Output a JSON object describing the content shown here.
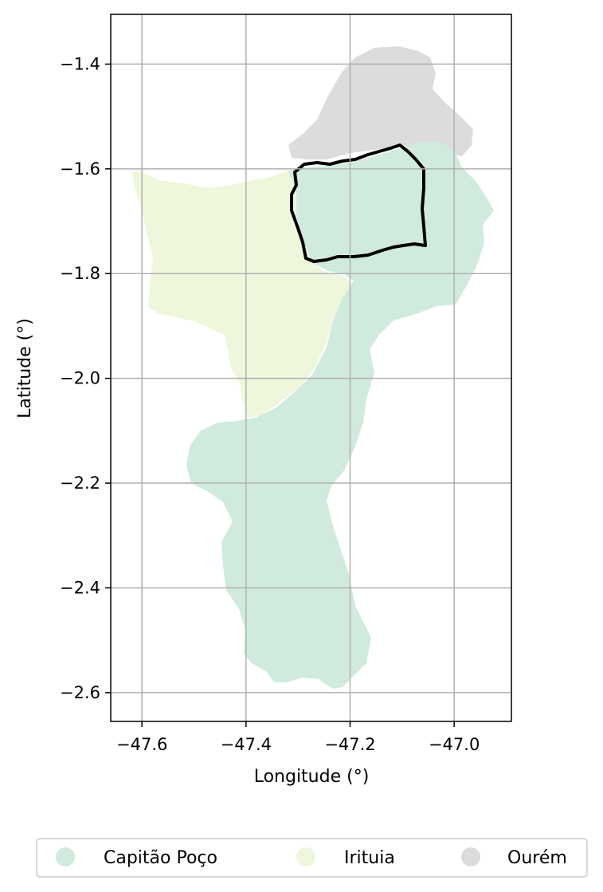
{
  "map": {
    "xlabel": "Longitude (°)",
    "ylabel": "Latitude (°)",
    "xlim": [
      -47.66,
      -46.89
    ],
    "ylim": [
      -2.655,
      -1.305
    ],
    "x_ticks": [
      -47.6,
      -47.4,
      -47.2,
      -47.0
    ],
    "y_ticks": [
      -1.4,
      -1.6,
      -1.8,
      -2.0,
      -2.2,
      -2.4,
      -2.6
    ],
    "x_tick_labels": [
      "−47.6",
      "−47.4",
      "−47.2",
      "−47.0"
    ],
    "y_tick_labels": [
      "−1.4",
      "−1.6",
      "−1.8",
      "−2.0",
      "−2.2",
      "−2.4",
      "−2.6"
    ],
    "grid": true,
    "legend_position": "bottom, below plot",
    "regions": [
      {
        "name": "Capitão Poço",
        "color": "#d0ebdd"
      },
      {
        "name": "Irituia",
        "color": "#eef7dc"
      },
      {
        "name": "Ourém",
        "color": "#dcdcdc"
      }
    ],
    "outline_color": "#000000"
  }
}
